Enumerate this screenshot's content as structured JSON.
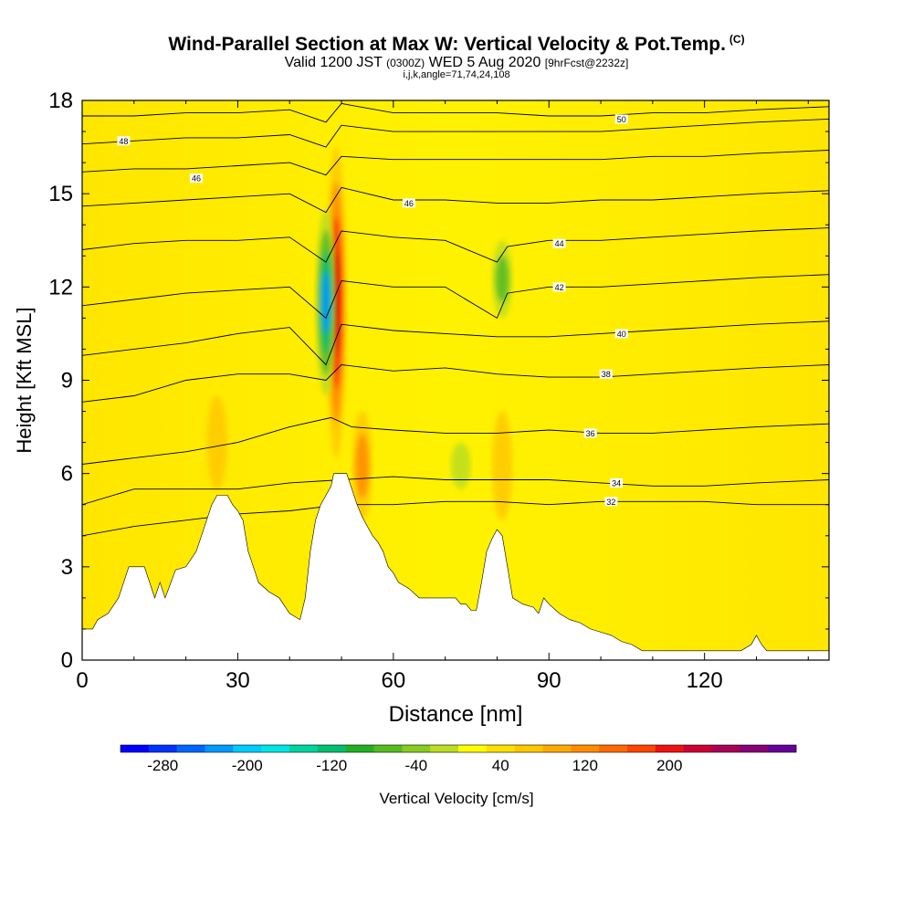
{
  "header": {
    "title": "Wind-Parallel Section at Max W: Vertical Velocity & Pot.Temp.",
    "copyright": "(C)",
    "valid_prefix": "Valid 1200 JST",
    "valid_utc": "(0300Z)",
    "valid_date": "WED 5 Aug 2020",
    "forecast": "[9hrFcst@2232z]",
    "grid_info": "i,j,k,angle=71,74,24,108"
  },
  "chart_data": {
    "type": "heatmap",
    "title": "Wind-Parallel Section at Max W: Vertical Velocity & Pot.Temp.",
    "xlabel": "Distance [nm]",
    "ylabel": "Height [Kft MSL]",
    "xlim": [
      0,
      144
    ],
    "ylim": [
      0,
      18
    ],
    "x_ticks": [
      0,
      30,
      60,
      90,
      120
    ],
    "y_ticks": [
      0,
      3,
      6,
      9,
      12,
      15,
      18
    ],
    "colorbar": {
      "label": "Vertical Velocity [cm/s]",
      "tick_labels": [
        "-280",
        "-200",
        "-120",
        "-40",
        "40",
        "120",
        "200"
      ],
      "colors": [
        "#0000ff",
        "#0033ff",
        "#0066ff",
        "#0099ff",
        "#00ccff",
        "#00e5e5",
        "#00d4a0",
        "#00c070",
        "#22b022",
        "#55bb22",
        "#88cc22",
        "#bbdd22",
        "#ffff00",
        "#ffe000",
        "#ffc800",
        "#ffaa00",
        "#ff8c00",
        "#ff6a00",
        "#ff4400",
        "#ee1111",
        "#cc0033",
        "#aa0055",
        "#880077",
        "#660099"
      ]
    },
    "terrain": [
      [
        0,
        1.0
      ],
      [
        2,
        1.0
      ],
      [
        3,
        1.3
      ],
      [
        5,
        1.5
      ],
      [
        7,
        2.0
      ],
      [
        9,
        3.0
      ],
      [
        12,
        3.0
      ],
      [
        14,
        2.0
      ],
      [
        15,
        2.5
      ],
      [
        16,
        2.0
      ],
      [
        18,
        2.9
      ],
      [
        20,
        3.0
      ],
      [
        22,
        3.5
      ],
      [
        24,
        4.5
      ],
      [
        25,
        5.0
      ],
      [
        26,
        5.3
      ],
      [
        28,
        5.3
      ],
      [
        29,
        5.0
      ],
      [
        30,
        4.8
      ],
      [
        31,
        4.5
      ],
      [
        32,
        3.5
      ],
      [
        33,
        3.0
      ],
      [
        34,
        2.5
      ],
      [
        36,
        2.2
      ],
      [
        38,
        2.0
      ],
      [
        40,
        1.5
      ],
      [
        42,
        1.3
      ],
      [
        43,
        2.0
      ],
      [
        44,
        3.5
      ],
      [
        45,
        4.5
      ],
      [
        46,
        5.0
      ],
      [
        47,
        5.3
      ],
      [
        48,
        5.6
      ],
      [
        48.5,
        6.0
      ],
      [
        51,
        6.0
      ],
      [
        52,
        5.5
      ],
      [
        53,
        5.0
      ],
      [
        54,
        4.6
      ],
      [
        55,
        4.3
      ],
      [
        56,
        4.0
      ],
      [
        57,
        3.8
      ],
      [
        58,
        3.5
      ],
      [
        59,
        3.0
      ],
      [
        60,
        2.8
      ],
      [
        61,
        2.5
      ],
      [
        63,
        2.3
      ],
      [
        65,
        2.0
      ],
      [
        68,
        2.0
      ],
      [
        70,
        2.0
      ],
      [
        72,
        2.0
      ],
      [
        73,
        1.8
      ],
      [
        74,
        1.8
      ],
      [
        75,
        1.6
      ],
      [
        76,
        1.6
      ],
      [
        77,
        2.5
      ],
      [
        78,
        3.5
      ],
      [
        79,
        3.9
      ],
      [
        80,
        4.2
      ],
      [
        81,
        4.0
      ],
      [
        82,
        3.0
      ],
      [
        83,
        2.0
      ],
      [
        85,
        1.8
      ],
      [
        87,
        1.7
      ],
      [
        88,
        1.5
      ],
      [
        89,
        2.0
      ],
      [
        90,
        1.8
      ],
      [
        92,
        1.5
      ],
      [
        94,
        1.3
      ],
      [
        96,
        1.2
      ],
      [
        98,
        1.0
      ],
      [
        100,
        0.9
      ],
      [
        102,
        0.8
      ],
      [
        104,
        0.6
      ],
      [
        106,
        0.5
      ],
      [
        108,
        0.3
      ],
      [
        110,
        0.3
      ],
      [
        112,
        0.3
      ],
      [
        115,
        0.3
      ],
      [
        118,
        0.3
      ],
      [
        120,
        0.3
      ],
      [
        122,
        0.3
      ],
      [
        125,
        0.3
      ],
      [
        127,
        0.3
      ],
      [
        129,
        0.5
      ],
      [
        130,
        0.8
      ],
      [
        131,
        0.5
      ],
      [
        132,
        0.3
      ],
      [
        135,
        0.3
      ],
      [
        138,
        0.3
      ],
      [
        141,
        0.3
      ],
      [
        144,
        0.3
      ]
    ],
    "isentropes": [
      {
        "label": "32",
        "label_at": [
          102,
          5.1
        ],
        "points": [
          [
            0,
            4.0
          ],
          [
            10,
            4.3
          ],
          [
            20,
            4.5
          ],
          [
            30,
            4.7
          ],
          [
            40,
            4.8
          ],
          [
            50,
            5.0
          ],
          [
            60,
            5.0
          ],
          [
            70,
            5.1
          ],
          [
            80,
            5.1
          ],
          [
            90,
            5.0
          ],
          [
            100,
            5.1
          ],
          [
            110,
            5.1
          ],
          [
            120,
            5.1
          ],
          [
            130,
            5.0
          ],
          [
            144,
            5.0
          ]
        ]
      },
      {
        "label": "34",
        "label_at": [
          103,
          5.7
        ],
        "points": [
          [
            0,
            5.0
          ],
          [
            10,
            5.5
          ],
          [
            20,
            5.5
          ],
          [
            30,
            5.5
          ],
          [
            40,
            5.7
          ],
          [
            50,
            5.8
          ],
          [
            60,
            5.9
          ],
          [
            70,
            5.8
          ],
          [
            80,
            5.8
          ],
          [
            90,
            5.8
          ],
          [
            100,
            5.7
          ],
          [
            110,
            5.6
          ],
          [
            120,
            5.6
          ],
          [
            130,
            5.7
          ],
          [
            144,
            5.8
          ]
        ]
      },
      {
        "label": "36",
        "label_at": [
          98,
          7.3
        ],
        "points": [
          [
            0,
            6.3
          ],
          [
            10,
            6.5
          ],
          [
            20,
            6.7
          ],
          [
            30,
            7.0
          ],
          [
            40,
            7.5
          ],
          [
            48,
            7.8
          ],
          [
            52,
            7.5
          ],
          [
            60,
            7.4
          ],
          [
            70,
            7.3
          ],
          [
            80,
            7.3
          ],
          [
            90,
            7.4
          ],
          [
            100,
            7.3
          ],
          [
            110,
            7.3
          ],
          [
            120,
            7.4
          ],
          [
            130,
            7.5
          ],
          [
            144,
            7.6
          ]
        ]
      },
      {
        "label": "38",
        "label_at": [
          101,
          9.2
        ],
        "points": [
          [
            0,
            8.3
          ],
          [
            10,
            8.5
          ],
          [
            20,
            9.0
          ],
          [
            30,
            9.2
          ],
          [
            40,
            9.2
          ],
          [
            47,
            9.0
          ],
          [
            50,
            9.5
          ],
          [
            60,
            9.3
          ],
          [
            70,
            9.4
          ],
          [
            80,
            9.2
          ],
          [
            90,
            9.1
          ],
          [
            100,
            9.1
          ],
          [
            110,
            9.2
          ],
          [
            120,
            9.3
          ],
          [
            130,
            9.4
          ],
          [
            144,
            9.5
          ]
        ]
      },
      {
        "label": "40",
        "label_at": [
          104,
          10.5
        ],
        "points": [
          [
            0,
            9.8
          ],
          [
            10,
            10.0
          ],
          [
            20,
            10.2
          ],
          [
            30,
            10.5
          ],
          [
            40,
            10.7
          ],
          [
            47,
            9.5
          ],
          [
            50,
            10.8
          ],
          [
            60,
            10.6
          ],
          [
            70,
            10.5
          ],
          [
            80,
            10.4
          ],
          [
            90,
            10.4
          ],
          [
            100,
            10.5
          ],
          [
            110,
            10.6
          ],
          [
            120,
            10.7
          ],
          [
            130,
            10.8
          ],
          [
            144,
            10.9
          ]
        ]
      },
      {
        "label": "42",
        "label_at": [
          92,
          12.0
        ],
        "points": [
          [
            0,
            11.4
          ],
          [
            10,
            11.6
          ],
          [
            20,
            11.8
          ],
          [
            30,
            11.9
          ],
          [
            40,
            12.0
          ],
          [
            47,
            11.0
          ],
          [
            50,
            12.2
          ],
          [
            60,
            12.0
          ],
          [
            70,
            12.0
          ],
          [
            80,
            11.0
          ],
          [
            82,
            11.8
          ],
          [
            90,
            12.0
          ],
          [
            100,
            12.0
          ],
          [
            110,
            12.1
          ],
          [
            120,
            12.2
          ],
          [
            130,
            12.3
          ],
          [
            144,
            12.4
          ]
        ]
      },
      {
        "label": "44",
        "label_at": [
          92,
          13.4
        ],
        "points": [
          [
            0,
            13.2
          ],
          [
            10,
            13.4
          ],
          [
            20,
            13.5
          ],
          [
            30,
            13.5
          ],
          [
            40,
            13.6
          ],
          [
            47,
            12.8
          ],
          [
            50,
            13.8
          ],
          [
            60,
            13.6
          ],
          [
            70,
            13.5
          ],
          [
            80,
            12.8
          ],
          [
            82,
            13.3
          ],
          [
            90,
            13.5
          ],
          [
            100,
            13.5
          ],
          [
            110,
            13.6
          ],
          [
            120,
            13.7
          ],
          [
            130,
            13.8
          ],
          [
            144,
            13.9
          ]
        ]
      },
      {
        "label": "46",
        "label_at": [
          63,
          14.7
        ],
        "points": [
          [
            0,
            14.6
          ],
          [
            10,
            14.7
          ],
          [
            20,
            14.8
          ],
          [
            30,
            14.9
          ],
          [
            40,
            15.0
          ],
          [
            47,
            14.4
          ],
          [
            50,
            15.2
          ],
          [
            60,
            14.8
          ],
          [
            70,
            14.8
          ],
          [
            80,
            14.7
          ],
          [
            90,
            14.7
          ],
          [
            100,
            14.8
          ],
          [
            110,
            14.8
          ],
          [
            120,
            14.9
          ],
          [
            130,
            15.0
          ],
          [
            144,
            15.1
          ]
        ]
      },
      {
        "label": "46",
        "label_at": [
          22,
          15.5
        ],
        "points": [
          [
            0,
            15.7
          ],
          [
            10,
            15.8
          ],
          [
            20,
            15.8
          ],
          [
            30,
            15.9
          ],
          [
            40,
            16.0
          ],
          [
            47,
            15.6
          ],
          [
            50,
            16.2
          ],
          [
            60,
            16.1
          ],
          [
            70,
            16.1
          ],
          [
            80,
            16.1
          ],
          [
            90,
            16.1
          ],
          [
            100,
            16.1
          ],
          [
            110,
            16.2
          ],
          [
            120,
            16.2
          ],
          [
            130,
            16.3
          ],
          [
            144,
            16.4
          ]
        ]
      },
      {
        "label": "48",
        "label_at": [
          8,
          16.7
        ],
        "points": [
          [
            0,
            16.6
          ],
          [
            10,
            16.7
          ],
          [
            20,
            16.8
          ],
          [
            30,
            16.8
          ],
          [
            40,
            16.9
          ],
          [
            47,
            16.5
          ],
          [
            50,
            17.2
          ],
          [
            60,
            17.0
          ],
          [
            70,
            17.0
          ],
          [
            80,
            17.0
          ],
          [
            90,
            17.0
          ],
          [
            100,
            17.0
          ],
          [
            110,
            17.1
          ],
          [
            120,
            17.2
          ],
          [
            130,
            17.3
          ],
          [
            144,
            17.4
          ]
        ]
      },
      {
        "label": "50",
        "label_at": [
          104,
          17.4
        ],
        "points": [
          [
            0,
            17.5
          ],
          [
            10,
            17.5
          ],
          [
            20,
            17.6
          ],
          [
            30,
            17.6
          ],
          [
            40,
            17.7
          ],
          [
            47,
            17.3
          ],
          [
            50,
            17.9
          ],
          [
            60,
            17.6
          ],
          [
            70,
            17.6
          ],
          [
            80,
            17.6
          ],
          [
            90,
            17.5
          ],
          [
            100,
            17.5
          ],
          [
            110,
            17.6
          ],
          [
            120,
            17.6
          ],
          [
            130,
            17.7
          ],
          [
            144,
            17.8
          ]
        ]
      }
    ],
    "velocity_features": [
      {
        "sign": "up",
        "x_center": 49,
        "y_range": [
          6.5,
          16.5
        ],
        "peak_cms": 200
      },
      {
        "sign": "down",
        "x_center": 47,
        "y_range": [
          8.5,
          14.5
        ],
        "peak_cms": -200
      },
      {
        "sign": "down",
        "x_center": 81,
        "y_range": [
          11,
          13.5
        ],
        "peak_cms": -120
      },
      {
        "sign": "up",
        "x_center": 26,
        "y_range": [
          5.5,
          8.5
        ],
        "peak_cms": 60
      },
      {
        "sign": "up",
        "x_center": 54,
        "y_range": [
          4.5,
          8.0
        ],
        "peak_cms": 80
      },
      {
        "sign": "up",
        "x_center": 81,
        "y_range": [
          4.5,
          8.0
        ],
        "peak_cms": 60
      },
      {
        "sign": "down",
        "x_center": 73,
        "y_range": [
          5.5,
          7.0
        ],
        "peak_cms": -60
      }
    ]
  }
}
